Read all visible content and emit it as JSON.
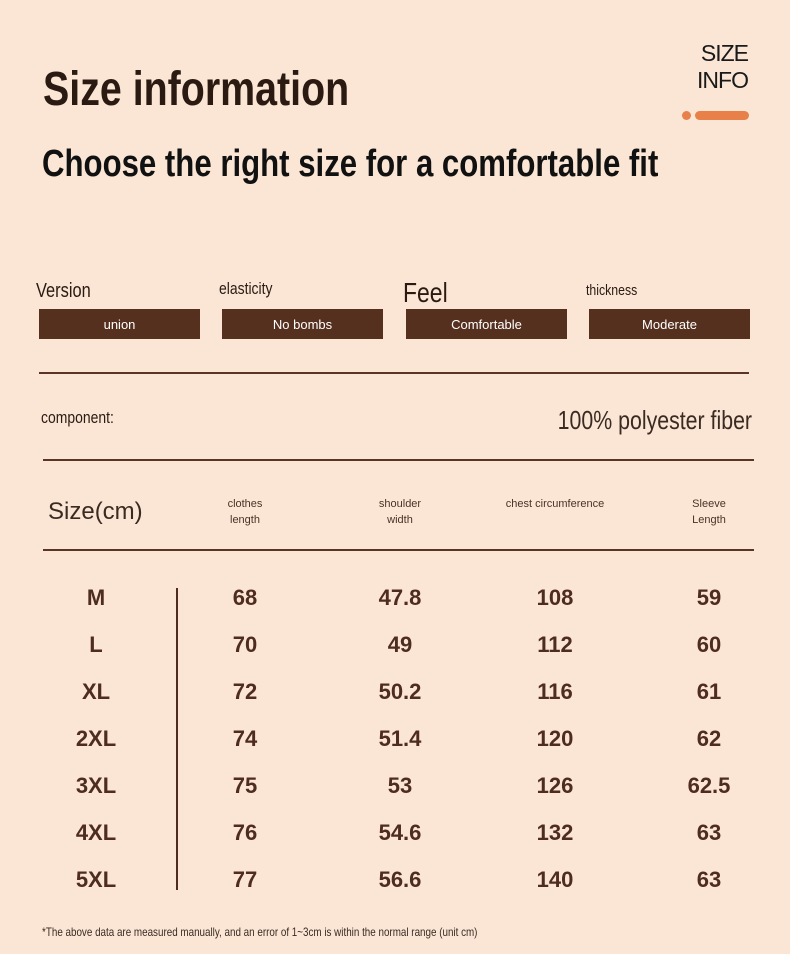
{
  "header": {
    "title": "Size information",
    "subtitle": "Choose the right size for a comfortable fit",
    "badge": [
      "SIZE",
      "INFO"
    ]
  },
  "attributes": [
    {
      "label": "Version",
      "value": "union"
    },
    {
      "label": "elasticity",
      "value": "No bombs"
    },
    {
      "label": "Feel",
      "value": "Comfortable"
    },
    {
      "label": "thickness",
      "value": "Moderate"
    }
  ],
  "component": {
    "label": "component:",
    "value": "100% polyester fiber"
  },
  "table": {
    "columns": [
      "Size(cm)",
      "clothes length",
      "shoulder width",
      "chest circumference",
      "Sleeve Length"
    ],
    "rows": [
      [
        "M",
        "68",
        "47.8",
        "108",
        "59"
      ],
      [
        "L",
        "70",
        "49",
        "112",
        "60"
      ],
      [
        "XL",
        "72",
        "50.2",
        "116",
        "61"
      ],
      [
        "2XL",
        "74",
        "51.4",
        "120",
        "62"
      ],
      [
        "3XL",
        "75",
        "53",
        "126",
        "62.5"
      ],
      [
        "4XL",
        "76",
        "54.6",
        "132",
        "63"
      ],
      [
        "5XL",
        "77",
        "56.6",
        "140",
        "63"
      ]
    ]
  },
  "footnote": "*The above data are measured manually, and an error of 1~3cm is within the normal range (unit cm)"
}
